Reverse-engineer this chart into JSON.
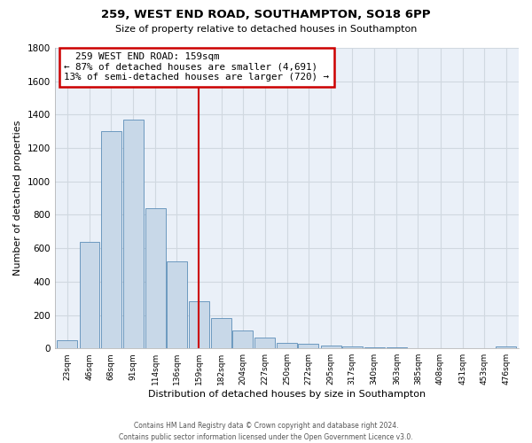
{
  "title": "259, WEST END ROAD, SOUTHAMPTON, SO18 6PP",
  "subtitle": "Size of property relative to detached houses in Southampton",
  "xlabel": "Distribution of detached houses by size in Southampton",
  "ylabel": "Number of detached properties",
  "footer_line1": "Contains HM Land Registry data © Crown copyright and database right 2024.",
  "footer_line2": "Contains public sector information licensed under the Open Government Licence v3.0.",
  "annotation_line1": "259 WEST END ROAD: 159sqm",
  "annotation_line2": "← 87% of detached houses are smaller (4,691)",
  "annotation_line3": "13% of semi-detached houses are larger (720) →",
  "property_line_x": 159,
  "bar_color": "#c8d8e8",
  "bar_edgecolor": "#5b8db8",
  "property_line_color": "#cc0000",
  "annotation_box_edgecolor": "#cc0000",
  "categories": [
    23,
    46,
    68,
    91,
    114,
    136,
    159,
    182,
    204,
    227,
    250,
    272,
    295,
    317,
    340,
    363,
    385,
    408,
    431,
    453,
    476
  ],
  "values": [
    50,
    640,
    1300,
    1370,
    840,
    520,
    280,
    180,
    105,
    65,
    35,
    25,
    17,
    11,
    7,
    4,
    3,
    2,
    1,
    1,
    10
  ],
  "ylim": [
    0,
    1800
  ],
  "yticks": [
    0,
    200,
    400,
    600,
    800,
    1000,
    1200,
    1400,
    1600,
    1800
  ],
  "background_color": "#ffffff",
  "grid_color": "#d0d8e0"
}
